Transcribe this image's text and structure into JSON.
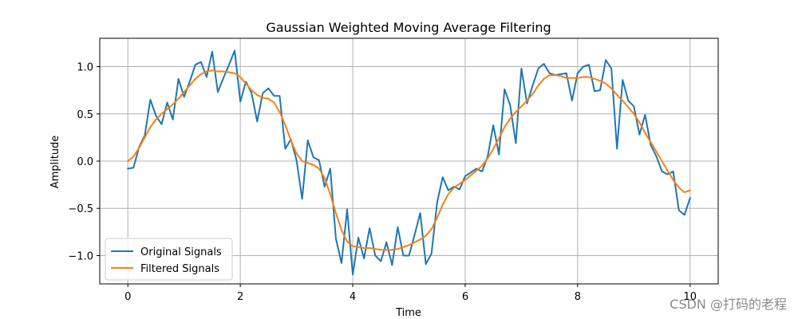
{
  "chart_data": {
    "type": "line",
    "title": "Gaussian Weighted Moving Average Filtering",
    "xlabel": "Time",
    "ylabel": "Amplitude",
    "xlim": [
      -0.5,
      10.5
    ],
    "ylim": [
      -1.3,
      1.3
    ],
    "xticks": [
      0,
      2,
      4,
      6,
      8,
      10
    ],
    "yticks": [
      -1.0,
      -0.5,
      0.0,
      0.5,
      1.0
    ],
    "xtick_labels": [
      "0",
      "2",
      "4",
      "6",
      "8",
      "10"
    ],
    "ytick_labels": [
      "−1.0",
      "−0.5",
      "0.0",
      "0.5",
      "1.0"
    ],
    "grid": true,
    "legend_position": "lower-left",
    "series": [
      {
        "name": "Original Signals",
        "color": "#1f77b4",
        "x": [
          0.0,
          0.1,
          0.2,
          0.3,
          0.4,
          0.5,
          0.6,
          0.7,
          0.8,
          0.9,
          1.0,
          1.1,
          1.2,
          1.3,
          1.4,
          1.5,
          1.6,
          1.7,
          1.8,
          1.9,
          2.0,
          2.1,
          2.2,
          2.3,
          2.4,
          2.5,
          2.6,
          2.7,
          2.8,
          2.9,
          3.0,
          3.1,
          3.2,
          3.3,
          3.4,
          3.5,
          3.6,
          3.7,
          3.8,
          3.9,
          4.0,
          4.1,
          4.2,
          4.3,
          4.4,
          4.5,
          4.6,
          4.7,
          4.8,
          4.9,
          5.0,
          5.1,
          5.2,
          5.3,
          5.4,
          5.5,
          5.6,
          5.7,
          5.8,
          5.9,
          6.0,
          6.1,
          6.2,
          6.3,
          6.4,
          6.5,
          6.6,
          6.7,
          6.8,
          6.9,
          7.0,
          7.1,
          7.2,
          7.3,
          7.4,
          7.5,
          7.6,
          7.7,
          7.8,
          7.9,
          8.0,
          8.1,
          8.2,
          8.3,
          8.4,
          8.5,
          8.6,
          8.7,
          8.8,
          8.9,
          9.0,
          9.1,
          9.2,
          9.3,
          9.4,
          9.5,
          9.6,
          9.7,
          9.8,
          9.9,
          10.0
        ],
        "values": [
          -0.08,
          -0.07,
          0.15,
          0.27,
          0.65,
          0.48,
          0.39,
          0.62,
          0.44,
          0.87,
          0.68,
          0.84,
          1.02,
          1.05,
          0.89,
          1.16,
          0.73,
          0.88,
          1.02,
          1.17,
          0.63,
          0.84,
          0.72,
          0.42,
          0.72,
          0.77,
          0.69,
          0.69,
          0.13,
          0.23,
          0.01,
          -0.4,
          0.22,
          0.04,
          0.01,
          -0.27,
          -0.08,
          -0.82,
          -1.08,
          -0.51,
          -1.2,
          -0.81,
          -1.03,
          -0.71,
          -1.0,
          -1.06,
          -0.86,
          -1.1,
          -0.7,
          -1.0,
          -1.0,
          -0.78,
          -0.55,
          -1.09,
          -0.98,
          -0.44,
          -0.17,
          -0.31,
          -0.27,
          -0.3,
          -0.16,
          -0.12,
          -0.08,
          -0.11,
          0.05,
          0.38,
          0.07,
          0.76,
          0.59,
          0.19,
          0.98,
          0.61,
          0.8,
          0.98,
          1.03,
          0.93,
          0.91,
          0.92,
          0.93,
          0.64,
          0.93,
          1.0,
          1.02,
          0.74,
          0.75,
          1.07,
          0.98,
          0.13,
          0.86,
          0.64,
          0.58,
          0.28,
          0.49,
          0.17,
          0.05,
          -0.11,
          -0.14,
          -0.11,
          -0.52,
          -0.57,
          -0.39
        ]
      },
      {
        "name": "Filtered Signals",
        "color": "#ff7f0e",
        "x": [
          0.0,
          0.1,
          0.2,
          0.3,
          0.4,
          0.5,
          0.6,
          0.7,
          0.8,
          0.9,
          1.0,
          1.1,
          1.2,
          1.3,
          1.4,
          1.5,
          1.6,
          1.7,
          1.8,
          1.9,
          2.0,
          2.1,
          2.2,
          2.3,
          2.4,
          2.5,
          2.6,
          2.7,
          2.8,
          2.9,
          3.0,
          3.1,
          3.2,
          3.3,
          3.4,
          3.5,
          3.6,
          3.7,
          3.8,
          3.9,
          4.0,
          4.1,
          4.2,
          4.3,
          4.4,
          4.5,
          4.6,
          4.7,
          4.8,
          4.9,
          5.0,
          5.1,
          5.2,
          5.3,
          5.4,
          5.5,
          5.6,
          5.7,
          5.8,
          5.9,
          6.0,
          6.1,
          6.2,
          6.3,
          6.4,
          6.5,
          6.6,
          6.7,
          6.8,
          6.9,
          7.0,
          7.1,
          7.2,
          7.3,
          7.4,
          7.5,
          7.6,
          7.7,
          7.8,
          7.9,
          8.0,
          8.1,
          8.2,
          8.3,
          8.4,
          8.5,
          8.6,
          8.7,
          8.8,
          8.9,
          9.0,
          9.1,
          9.2,
          9.3,
          9.4,
          9.5,
          9.6,
          9.7,
          9.8,
          9.9,
          10.0
        ],
        "values": [
          0.0,
          0.05,
          0.14,
          0.25,
          0.36,
          0.44,
          0.5,
          0.55,
          0.6,
          0.66,
          0.73,
          0.8,
          0.87,
          0.92,
          0.95,
          0.96,
          0.95,
          0.95,
          0.94,
          0.93,
          0.89,
          0.82,
          0.75,
          0.7,
          0.67,
          0.66,
          0.62,
          0.52,
          0.38,
          0.22,
          0.08,
          0.0,
          -0.02,
          -0.04,
          -0.08,
          -0.18,
          -0.35,
          -0.55,
          -0.73,
          -0.85,
          -0.9,
          -0.91,
          -0.92,
          -0.92,
          -0.93,
          -0.94,
          -0.94,
          -0.94,
          -0.93,
          -0.91,
          -0.89,
          -0.86,
          -0.83,
          -0.79,
          -0.72,
          -0.6,
          -0.46,
          -0.35,
          -0.28,
          -0.24,
          -0.2,
          -0.15,
          -0.1,
          -0.05,
          0.03,
          0.13,
          0.24,
          0.36,
          0.45,
          0.52,
          0.58,
          0.64,
          0.71,
          0.8,
          0.87,
          0.91,
          0.91,
          0.9,
          0.88,
          0.88,
          0.88,
          0.89,
          0.89,
          0.87,
          0.85,
          0.82,
          0.77,
          0.7,
          0.64,
          0.57,
          0.5,
          0.41,
          0.3,
          0.2,
          0.1,
          0.0,
          -0.1,
          -0.2,
          -0.28,
          -0.33,
          -0.31
        ]
      }
    ]
  },
  "watermark": "CSDN @打码的老程"
}
